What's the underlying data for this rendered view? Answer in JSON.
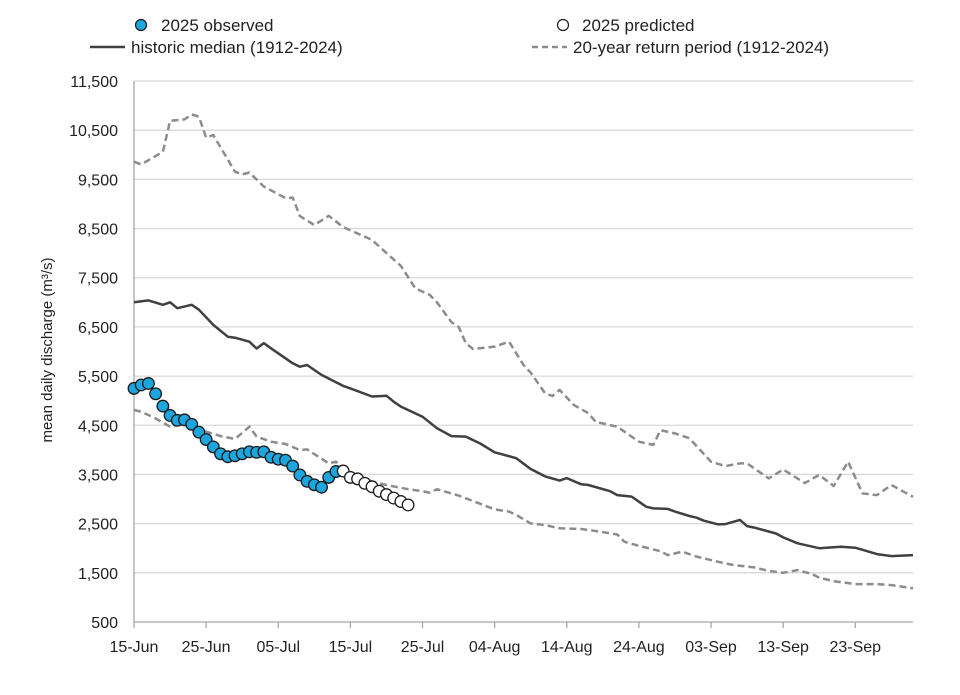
{
  "chart_data": {
    "type": "line",
    "ylabel": "mean daily discharge (m³/s)",
    "xlabel": "",
    "ylim": [
      500,
      11500
    ],
    "yticks": [
      "500",
      "1,500",
      "2,500",
      "3,500",
      "4,500",
      "5,500",
      "6,500",
      "7,500",
      "8,500",
      "9,500",
      "10,500",
      "11,500"
    ],
    "ytick_values": [
      500,
      1500,
      2500,
      3500,
      4500,
      5500,
      6500,
      7500,
      8500,
      9500,
      10500,
      11500
    ],
    "xlim": [
      "15-Jun",
      "01-Oct"
    ],
    "xticks": [
      "15-Jun",
      "25-Jun",
      "05-Jul",
      "15-Jul",
      "25-Jul",
      "04-Aug",
      "14-Aug",
      "24-Aug",
      "03-Sep",
      "13-Sep",
      "23-Sep"
    ],
    "grid": "horizontal",
    "legend_placement": "top",
    "legend": [
      {
        "label": "2025 observed",
        "marker": "filled-circle"
      },
      {
        "label": "2025 predicted",
        "marker": "open-circle"
      },
      {
        "label": "historic median (1912-2024)",
        "marker": "solid-line"
      },
      {
        "label": "20-year return period (1912-2024)",
        "marker": "dashed-line"
      }
    ],
    "colors": {
      "observed": "#1ba6df",
      "marker_edge": "#1a1a1a",
      "median": "#404040",
      "return_period": "#8c8c8c",
      "grid": "#d9d9d9",
      "axis": "#a6a6a6"
    },
    "series": [
      {
        "name": "2025 observed",
        "style": "markers-filled",
        "points": [
          [
            "15-Jun",
            5250
          ],
          [
            "16-Jun",
            5320
          ],
          [
            "17-Jun",
            5350
          ],
          [
            "18-Jun",
            5140
          ],
          [
            "19-Jun",
            4890
          ],
          [
            "20-Jun",
            4700
          ],
          [
            "21-Jun",
            4600
          ],
          [
            "22-Jun",
            4610
          ],
          [
            "23-Jun",
            4520
          ],
          [
            "24-Jun",
            4360
          ],
          [
            "25-Jun",
            4210
          ],
          [
            "26-Jun",
            4060
          ],
          [
            "27-Jun",
            3920
          ],
          [
            "28-Jun",
            3860
          ],
          [
            "29-Jun",
            3880
          ],
          [
            "30-Jun",
            3920
          ],
          [
            "01-Jul",
            3960
          ],
          [
            "02-Jul",
            3950
          ],
          [
            "03-Jul",
            3960
          ],
          [
            "04-Jul",
            3850
          ],
          [
            "05-Jul",
            3810
          ],
          [
            "06-Jul",
            3790
          ],
          [
            "07-Jul",
            3670
          ],
          [
            "08-Jul",
            3490
          ],
          [
            "09-Jul",
            3360
          ],
          [
            "10-Jul",
            3290
          ],
          [
            "11-Jul",
            3240
          ],
          [
            "12-Jul",
            3440
          ],
          [
            "13-Jul",
            3560
          ]
        ]
      },
      {
        "name": "2025 predicted",
        "style": "markers-open",
        "points": [
          [
            "14-Jul",
            3570
          ],
          [
            "15-Jul",
            3440
          ],
          [
            "16-Jul",
            3410
          ],
          [
            "17-Jul",
            3320
          ],
          [
            "18-Jul",
            3250
          ],
          [
            "19-Jul",
            3160
          ],
          [
            "20-Jul",
            3090
          ],
          [
            "21-Jul",
            3020
          ],
          [
            "22-Jul",
            2950
          ],
          [
            "23-Jul",
            2880
          ]
        ]
      },
      {
        "name": "historic median (1912-2024)",
        "style": "solid",
        "points": [
          [
            "15-Jun",
            7000
          ],
          [
            "17-Jun",
            7040
          ],
          [
            "19-Jun",
            6950
          ],
          [
            "20-Jun",
            7000
          ],
          [
            "21-Jun",
            6880
          ],
          [
            "23-Jun",
            6950
          ],
          [
            "24-Jun",
            6850
          ],
          [
            "26-Jun",
            6540
          ],
          [
            "28-Jun",
            6300
          ],
          [
            "29-Jun",
            6280
          ],
          [
            "01-Jul",
            6200
          ],
          [
            "02-Jul",
            6060
          ],
          [
            "03-Jul",
            6170
          ],
          [
            "04-Jul",
            6065
          ],
          [
            "07-Jul",
            5760
          ],
          [
            "08-Jul",
            5690
          ],
          [
            "09-Jul",
            5725
          ],
          [
            "11-Jul",
            5525
          ],
          [
            "14-Jul",
            5300
          ],
          [
            "15-Jul",
            5250
          ],
          [
            "18-Jul",
            5085
          ],
          [
            "20-Jul",
            5100
          ],
          [
            "21-Jul",
            4980
          ],
          [
            "22-Jul",
            4880
          ],
          [
            "25-Jul",
            4675
          ],
          [
            "27-Jul",
            4440
          ],
          [
            "29-Jul",
            4280
          ],
          [
            "31-Jul",
            4270
          ],
          [
            "02-Aug",
            4130
          ],
          [
            "04-Aug",
            3950
          ],
          [
            "07-Aug",
            3830
          ],
          [
            "09-Aug",
            3610
          ],
          [
            "11-Aug",
            3460
          ],
          [
            "13-Aug",
            3375
          ],
          [
            "14-Aug",
            3425
          ],
          [
            "16-Aug",
            3300
          ],
          [
            "17-Aug",
            3285
          ],
          [
            "20-Aug",
            3160
          ],
          [
            "21-Aug",
            3080
          ],
          [
            "23-Aug",
            3050
          ],
          [
            "25-Aug",
            2845
          ],
          [
            "26-Aug",
            2810
          ],
          [
            "28-Aug",
            2800
          ],
          [
            "29-Aug",
            2745
          ],
          [
            "31-Aug",
            2655
          ],
          [
            "01-Sep",
            2620
          ],
          [
            "02-Sep",
            2560
          ],
          [
            "04-Sep",
            2485
          ],
          [
            "05-Sep",
            2490
          ],
          [
            "07-Sep",
            2575
          ],
          [
            "08-Sep",
            2450
          ],
          [
            "09-Sep",
            2420
          ],
          [
            "12-Sep",
            2300
          ],
          [
            "13-Sep",
            2220
          ],
          [
            "15-Sep",
            2100
          ],
          [
            "18-Sep",
            2000
          ],
          [
            "21-Sep",
            2030
          ],
          [
            "23-Sep",
            2010
          ],
          [
            "26-Sep",
            1880
          ],
          [
            "28-Sep",
            1840
          ],
          [
            "01-Oct",
            1860
          ]
        ]
      },
      {
        "name": "20-year return period (1912-2024)",
        "bound": "upper",
        "style": "dashed",
        "points": [
          [
            "15-Jun",
            9860
          ],
          [
            "16-Jun",
            9805
          ],
          [
            "19-Jun",
            10060
          ],
          [
            "20-Jun",
            10690
          ],
          [
            "22-Jun",
            10720
          ],
          [
            "23-Jun",
            10820
          ],
          [
            "24-Jun",
            10775
          ],
          [
            "25-Jun",
            10350
          ],
          [
            "26-Jun",
            10400
          ],
          [
            "29-Jun",
            9655
          ],
          [
            "30-Jun",
            9600
          ],
          [
            "01-Jul",
            9640
          ],
          [
            "03-Jul",
            9355
          ],
          [
            "06-Jul",
            9120
          ],
          [
            "07-Jul",
            9130
          ],
          [
            "08-Jul",
            8755
          ],
          [
            "10-Jul",
            8570
          ],
          [
            "12-Jul",
            8760
          ],
          [
            "14-Jul",
            8530
          ],
          [
            "18-Jul",
            8270
          ],
          [
            "20-Jul",
            8000
          ],
          [
            "22-Jul",
            7740
          ],
          [
            "24-Jul",
            7285
          ],
          [
            "26-Jul",
            7150
          ],
          [
            "27-Jul",
            7000
          ],
          [
            "28-Jul",
            6800
          ],
          [
            "29-Jul",
            6600
          ],
          [
            "30-Jul",
            6500
          ],
          [
            "31-Jul",
            6170
          ],
          [
            "01-Aug",
            6050
          ],
          [
            "04-Aug",
            6100
          ],
          [
            "06-Aug",
            6200
          ],
          [
            "08-Aug",
            5725
          ],
          [
            "09-Aug",
            5570
          ],
          [
            "11-Aug",
            5150
          ],
          [
            "12-Aug",
            5095
          ],
          [
            "13-Aug",
            5220
          ],
          [
            "15-Aug",
            4910
          ],
          [
            "17-Aug",
            4745
          ],
          [
            "18-Aug",
            4570
          ],
          [
            "21-Aug",
            4470
          ],
          [
            "24-Aug",
            4165
          ],
          [
            "26-Aug",
            4100
          ],
          [
            "27-Aug",
            4400
          ],
          [
            "29-Aug",
            4335
          ],
          [
            "31-Aug",
            4235
          ],
          [
            "03-Sep",
            3760
          ],
          [
            "05-Sep",
            3670
          ],
          [
            "07-Sep",
            3725
          ],
          [
            "08-Sep",
            3725
          ],
          [
            "11-Sep",
            3420
          ],
          [
            "13-Sep",
            3600
          ],
          [
            "16-Sep",
            3325
          ],
          [
            "18-Sep",
            3490
          ],
          [
            "20-Sep",
            3265
          ],
          [
            "22-Sep",
            3760
          ],
          [
            "24-Sep",
            3115
          ],
          [
            "26-Sep",
            3080
          ],
          [
            "28-Sep",
            3285
          ],
          [
            "01-Oct",
            3045
          ]
        ]
      },
      {
        "name": "20-year return period (1912-2024)",
        "bound": "lower",
        "style": "dashed",
        "points": [
          [
            "15-Jun",
            4810
          ],
          [
            "16-Jun",
            4775
          ],
          [
            "18-Jun",
            4640
          ],
          [
            "20-Jun",
            4470
          ],
          [
            "22-Jun",
            4540
          ],
          [
            "25-Jun",
            4370
          ],
          [
            "27-Jun",
            4280
          ],
          [
            "29-Jun",
            4220
          ],
          [
            "01-Jul",
            4470
          ],
          [
            "02-Jul",
            4270
          ],
          [
            "04-Jul",
            4165
          ],
          [
            "06-Jul",
            4120
          ],
          [
            "08-Jul",
            3995
          ],
          [
            "09-Jul",
            4010
          ],
          [
            "12-Jul",
            3725
          ],
          [
            "13-Jul",
            3760
          ],
          [
            "15-Jul",
            3525
          ],
          [
            "18-Jul",
            3355
          ],
          [
            "20-Jul",
            3285
          ],
          [
            "23-Jul",
            3200
          ],
          [
            "25-Jul",
            3160
          ],
          [
            "26-Jul",
            3130
          ],
          [
            "27-Jul",
            3200
          ],
          [
            "30-Jul",
            3070
          ],
          [
            "01-Aug",
            2960
          ],
          [
            "04-Aug",
            2790
          ],
          [
            "06-Aug",
            2745
          ],
          [
            "07-Aug",
            2675
          ],
          [
            "09-Aug",
            2505
          ],
          [
            "11-Aug",
            2470
          ],
          [
            "13-Aug",
            2405
          ],
          [
            "16-Aug",
            2390
          ],
          [
            "18-Aug",
            2350
          ],
          [
            "21-Aug",
            2280
          ],
          [
            "22-Aug",
            2130
          ],
          [
            "24-Aug",
            2050
          ],
          [
            "27-Aug",
            1940
          ],
          [
            "28-Aug",
            1860
          ],
          [
            "30-Aug",
            1930
          ],
          [
            "01-Sep",
            1830
          ],
          [
            "04-Sep",
            1725
          ],
          [
            "06-Sep",
            1660
          ],
          [
            "09-Sep",
            1610
          ],
          [
            "11-Sep",
            1540
          ],
          [
            "13-Sep",
            1500
          ],
          [
            "15-Sep",
            1555
          ],
          [
            "17-Sep",
            1475
          ],
          [
            "18-Sep",
            1400
          ],
          [
            "20-Sep",
            1330
          ],
          [
            "23-Sep",
            1270
          ],
          [
            "26-Sep",
            1270
          ],
          [
            "28-Sep",
            1250
          ],
          [
            "01-Oct",
            1185
          ]
        ]
      }
    ]
  }
}
